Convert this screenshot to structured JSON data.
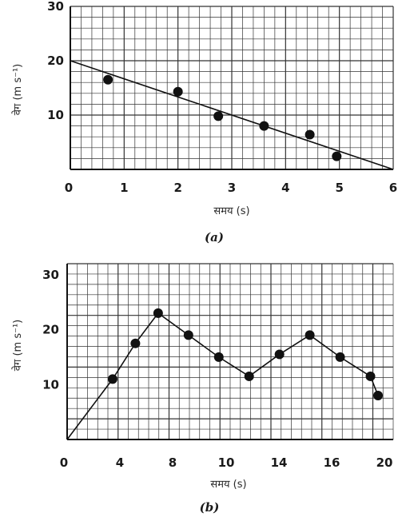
{
  "chart_data": [
    {
      "type": "scatter",
      "caption": "(a)",
      "xlabel": "समय (s)",
      "ylabel": "वेग (m s⁻¹)",
      "xlim": [
        0,
        6
      ],
      "ylim": [
        0,
        30
      ],
      "x_ticks": [
        "0",
        "1",
        "2",
        "3",
        "4",
        "5",
        "6"
      ],
      "y_ticks": [
        "10",
        "20",
        "30"
      ],
      "grid": true,
      "series": [
        {
          "kind": "points",
          "x": [
            0.7,
            2.0,
            2.75,
            3.6,
            4.45,
            4.95
          ],
          "y": [
            16.5,
            14.3,
            9.8,
            8.0,
            6.4,
            2.4
          ]
        },
        {
          "kind": "fit-line",
          "x": [
            0,
            6
          ],
          "y": [
            20,
            0
          ]
        }
      ]
    },
    {
      "type": "line",
      "caption": "(b)",
      "xlabel": "समय (s)",
      "ylabel": "वेग (m s⁻¹)",
      "xlim": [
        0,
        21.5
      ],
      "ylim": [
        0,
        32
      ],
      "x_ticks": [
        "0",
        "4",
        "8",
        "10",
        "14",
        "16",
        "20"
      ],
      "y_ticks": [
        "10",
        "20",
        "30"
      ],
      "grid": true,
      "series": [
        {
          "kind": "line-with-points",
          "x": [
            0,
            3,
            4.5,
            6,
            8,
            10,
            12,
            14,
            16,
            18,
            20,
            20.5
          ],
          "y": [
            0,
            11,
            17.5,
            23,
            19,
            15,
            11.5,
            15.5,
            19,
            15,
            11.5,
            8
          ],
          "markers": [
            false,
            true,
            true,
            true,
            true,
            true,
            true,
            true,
            true,
            true,
            true,
            true
          ]
        }
      ]
    }
  ]
}
